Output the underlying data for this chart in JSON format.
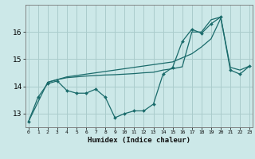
{
  "xlabel": "Humidex (Indice chaleur)",
  "background_color": "#cce8e8",
  "grid_color": "#aacccc",
  "line_color": "#1a6b6b",
  "x_ticks": [
    0,
    1,
    2,
    3,
    4,
    5,
    6,
    7,
    8,
    9,
    10,
    11,
    12,
    13,
    14,
    15,
    16,
    17,
    18,
    19,
    20,
    21,
    22,
    23
  ],
  "ylim": [
    12.5,
    17.0
  ],
  "yticks": [
    13,
    14,
    15,
    16
  ],
  "xlim": [
    -0.3,
    23.3
  ],
  "line1_x": [
    0,
    1,
    2,
    3,
    4,
    5,
    6,
    7,
    8,
    9,
    10,
    11,
    12,
    13,
    14,
    15,
    16,
    17,
    18,
    19,
    20,
    21,
    22,
    23
  ],
  "line1_y": [
    12.7,
    13.6,
    14.1,
    14.2,
    13.85,
    13.75,
    13.75,
    13.9,
    13.6,
    12.85,
    13.0,
    13.1,
    13.1,
    13.35,
    14.45,
    14.7,
    15.65,
    16.1,
    15.95,
    16.3,
    16.55,
    14.6,
    14.45,
    14.75
  ],
  "line2_x": [
    0,
    2,
    3,
    4,
    5,
    6,
    7,
    8,
    9,
    10,
    11,
    12,
    13,
    14,
    15,
    16,
    17,
    18,
    19,
    20,
    21,
    22,
    23
  ],
  "line2_y": [
    12.7,
    14.15,
    14.25,
    14.32,
    14.35,
    14.38,
    14.4,
    14.42,
    14.43,
    14.45,
    14.47,
    14.5,
    14.52,
    14.6,
    14.65,
    14.72,
    16.0,
    16.0,
    16.45,
    16.55,
    14.7,
    14.6,
    14.75
  ],
  "line3_x": [
    2,
    3,
    4,
    5,
    6,
    7,
    8,
    9,
    10,
    11,
    12,
    13,
    14,
    15,
    16,
    17,
    18,
    19,
    20
  ],
  "line3_y": [
    14.15,
    14.25,
    14.35,
    14.4,
    14.45,
    14.5,
    14.55,
    14.6,
    14.65,
    14.7,
    14.75,
    14.8,
    14.85,
    14.9,
    15.05,
    15.2,
    15.45,
    15.75,
    16.5
  ]
}
